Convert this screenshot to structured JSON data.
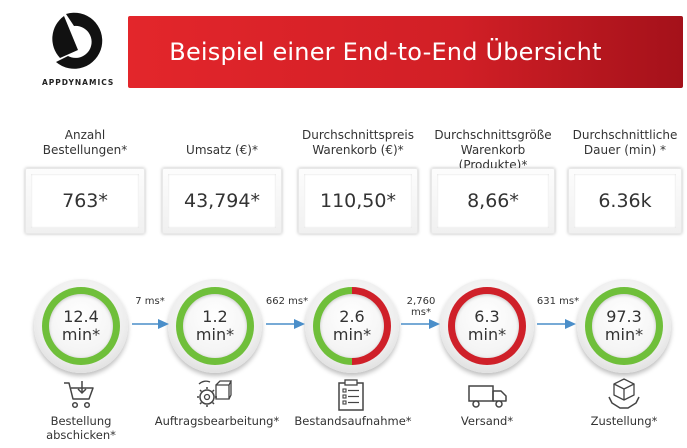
{
  "brand": {
    "logo_text": "APPDYNAMICS"
  },
  "header": {
    "title": "Beispiel einer End-to-End Übersicht"
  },
  "kpis": [
    {
      "label_line1": "Anzahl",
      "label_line2": "Bestellungen*",
      "value": "763*"
    },
    {
      "label_line1": "",
      "label_line2": "Umsatz (€)*",
      "value": "43,794*"
    },
    {
      "label_line1": "Durchschnittspreis",
      "label_line2": "Warenkorb (€)*",
      "value": "110,50*"
    },
    {
      "label_line1": "Durchschnittsgröße",
      "label_line2": "Warenkorb (Produkte)*",
      "value": "8,66*"
    },
    {
      "label_line1": "Durchschnittliche",
      "label_line2": "Dauer (min) *",
      "value": "6.36k"
    }
  ],
  "steps": [
    {
      "value": "12.4",
      "unit": "min*",
      "status": "green",
      "label_line1": "Bestellung",
      "label_line2": "abschicken*",
      "icon": "cart-icon"
    },
    {
      "value": "1.2",
      "unit": "min*",
      "status": "green",
      "label_line1": "Auftragsbearbeitung*",
      "label_line2": "",
      "icon": "gear-box-icon"
    },
    {
      "value": "2.6",
      "unit": "min*",
      "status": "split",
      "label_line1": "Bestandsaufnahme*",
      "label_line2": "",
      "icon": "clipboard-icon"
    },
    {
      "value": "6.3",
      "unit": "min*",
      "status": "red",
      "label_line1": "Versand*",
      "label_line2": "",
      "icon": "truck-icon"
    },
    {
      "value": "97.3",
      "unit": "min*",
      "status": "green",
      "label_line1": "Zustellung*",
      "label_line2": "",
      "icon": "package-hand-icon"
    }
  ],
  "connectors": [
    {
      "label": "7 ms*"
    },
    {
      "label": "662 ms*"
    },
    {
      "label": "2,760 ms*"
    },
    {
      "label": "631 ms*"
    }
  ],
  "colors": {
    "brand_red": "#d11f26",
    "status_green": "#6fbf3a",
    "status_red": "#cf2029",
    "arrow_blue": "#4a8ec9"
  }
}
